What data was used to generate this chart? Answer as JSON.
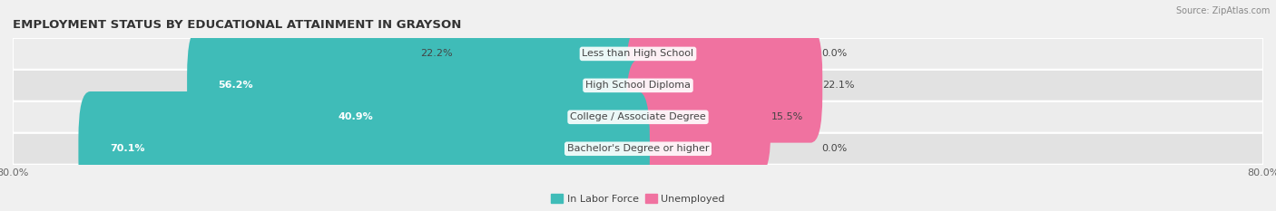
{
  "title": "EMPLOYMENT STATUS BY EDUCATIONAL ATTAINMENT IN GRAYSON",
  "source": "Source: ZipAtlas.com",
  "categories": [
    "Less than High School",
    "High School Diploma",
    "College / Associate Degree",
    "Bachelor's Degree or higher"
  ],
  "in_labor_force": [
    22.2,
    56.2,
    40.9,
    70.1
  ],
  "unemployed": [
    0.0,
    22.1,
    15.5,
    0.0
  ],
  "xlim_left": -80.0,
  "xlim_right": 80.0,
  "color_labor": "#3fbcb8",
  "color_unemployed": "#f072a0",
  "color_labor_light": "#b2e0df",
  "color_unemployed_light": "#f9c0d5",
  "bar_height": 0.62,
  "row_bg_even": "#ececec",
  "row_bg_odd": "#e2e2e2",
  "legend_labor": "In Labor Force",
  "legend_unemployed": "Unemployed",
  "title_fontsize": 9.5,
  "source_fontsize": 7,
  "label_fontsize": 8,
  "category_fontsize": 8,
  "tick_fontsize": 8
}
